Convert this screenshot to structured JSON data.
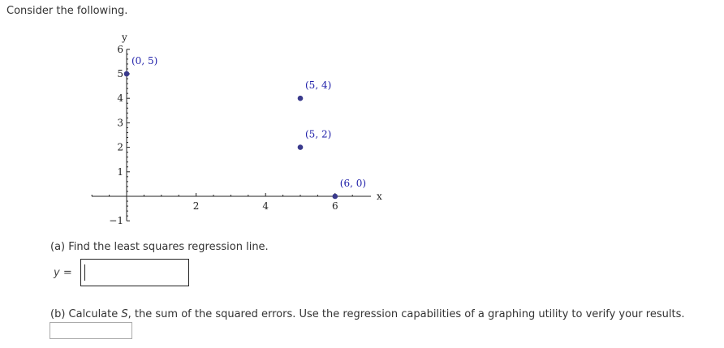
{
  "intro": "Consider the following.",
  "chart_data": {
    "type": "scatter",
    "xlabel": "x",
    "ylabel": "y",
    "xlim": [
      -1,
      7
    ],
    "ylim": [
      -1,
      6
    ],
    "x_ticks": [
      2,
      4,
      6
    ],
    "y_ticks": [
      -1,
      1,
      2,
      3,
      4,
      5,
      6
    ],
    "points": [
      {
        "x": 0,
        "y": 5,
        "label": "(0, 5)"
      },
      {
        "x": 5,
        "y": 4,
        "label": "(5, 4)"
      },
      {
        "x": 5,
        "y": 2,
        "label": "(5, 2)"
      },
      {
        "x": 6,
        "y": 0,
        "label": "(6, 0)"
      }
    ],
    "point_color": "#3a3a8c",
    "label_color": "#2222aa"
  },
  "part_a": {
    "question": "(a) Find the least squares regression line.",
    "prefix": "y =",
    "value": ""
  },
  "part_b": {
    "question_pre": "(b) Calculate ",
    "var": "S",
    "question_post": ", the sum of the squared errors. Use the regression capabilities of a graphing utility to verify your results.",
    "value": ""
  }
}
